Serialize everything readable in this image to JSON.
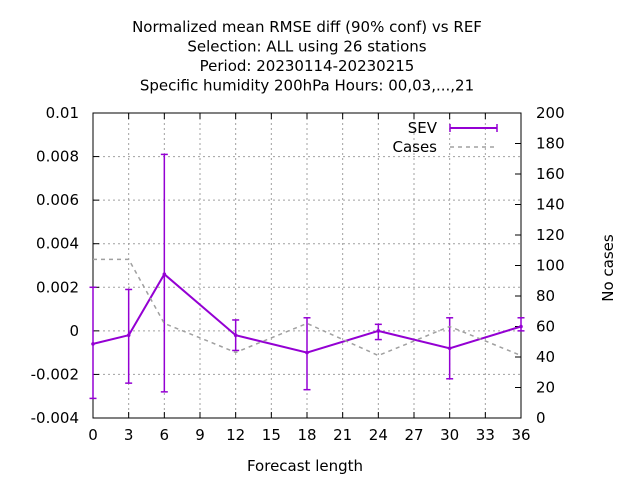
{
  "chart_data": {
    "type": "line",
    "title_lines": [
      "Normalized mean RMSE diff (90% conf) vs REF",
      "Selection: ALL using    26 stations",
      "Period: 20230114-20230215",
      "Specific humidity 200hPa   Hours:  00,03,...,21"
    ],
    "xlabel": "Forecast length",
    "ylabel": "",
    "y2label": "No cases",
    "xlim": [
      0,
      36
    ],
    "ylim": [
      -0.004,
      0.01
    ],
    "y2lim": [
      0,
      200
    ],
    "xticks": [
      0,
      3,
      6,
      9,
      12,
      15,
      18,
      21,
      24,
      27,
      30,
      33,
      36
    ],
    "xtick_labels": [
      "0",
      "3",
      "6",
      "9",
      "12",
      "15",
      "18",
      "21",
      "24",
      "27",
      "30",
      "33",
      "36"
    ],
    "yticks": [
      -0.004,
      -0.002,
      0,
      0.002,
      0.004,
      0.006,
      0.008,
      0.01
    ],
    "ytick_labels": [
      "-0.004",
      "-0.002",
      "0",
      "0.002",
      "0.004",
      "0.006",
      "0.008",
      "0.01"
    ],
    "y2ticks": [
      0,
      20,
      40,
      60,
      80,
      100,
      120,
      140,
      160,
      180,
      200
    ],
    "y2tick_labels": [
      "0",
      "20",
      "40",
      "60",
      "80",
      "100",
      "120",
      "140",
      "160",
      "180",
      "200"
    ],
    "grid": true,
    "legend_position": "top-right",
    "series": [
      {
        "name": "SEV",
        "axis": "left",
        "color": "#9400d3",
        "style": "solid-errorbars",
        "x": [
          0,
          3,
          6,
          12,
          18,
          24,
          30,
          36
        ],
        "y": [
          -0.0006,
          -0.0002,
          0.0026,
          -0.0002,
          -0.001,
          0.0,
          -0.0008,
          0.0002
        ],
        "err_low": [
          -0.0031,
          -0.0024,
          -0.0028,
          -0.0009,
          -0.0027,
          -0.0004,
          -0.0022,
          -0.0
        ],
        "err_high": [
          0.002,
          0.0019,
          0.0081,
          0.0005,
          0.0006,
          0.0003,
          0.0006,
          0.0006
        ]
      },
      {
        "name": "Cases",
        "axis": "right",
        "color": "#a0a0a0",
        "style": "dashed",
        "x": [
          0,
          3,
          6,
          12,
          18,
          24,
          30,
          36
        ],
        "y": [
          104,
          104,
          62,
          43,
          62,
          41,
          60,
          41
        ]
      }
    ]
  }
}
